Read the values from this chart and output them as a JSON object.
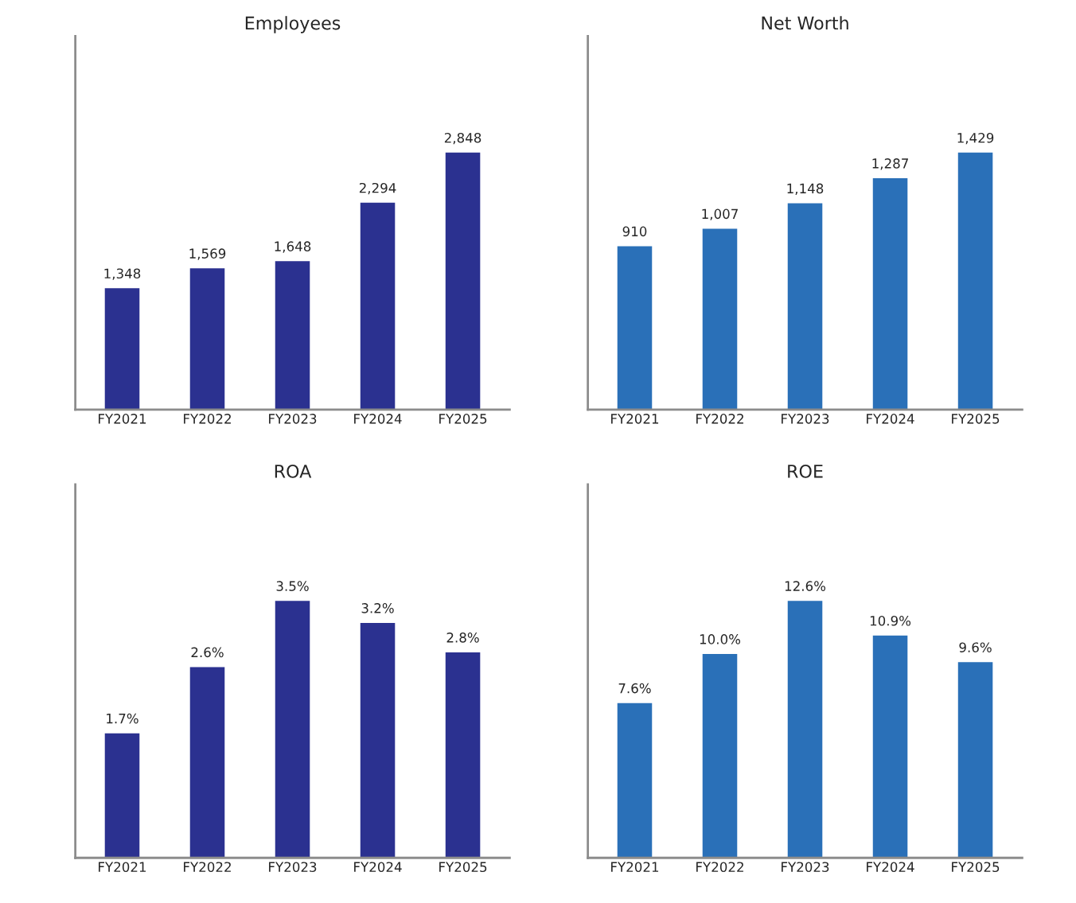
{
  "chart_data": [
    {
      "type": "bar",
      "title": "Employees",
      "categories": [
        "FY2021",
        "FY2022",
        "FY2023",
        "FY2024",
        "FY2025"
      ],
      "values": [
        1348,
        1569,
        1648,
        2294,
        2848
      ],
      "color": "#2b3190",
      "value_labels": [
        "1,348",
        "1,569",
        "1,648",
        "2,294",
        "2,848"
      ],
      "tick_labels": "x",
      "grid": false,
      "legend": false
    },
    {
      "type": "bar",
      "title": "Net Worth",
      "categories": [
        "FY2021",
        "FY2022",
        "FY2023",
        "FY2024",
        "FY2025"
      ],
      "values": [
        910,
        1007,
        1148,
        1287,
        1429
      ],
      "color": "#2a70b8",
      "value_labels": [
        "910",
        "1,007",
        "1,148",
        "1,287",
        "1,429"
      ],
      "tick_labels": "x",
      "grid": false,
      "legend": false
    },
    {
      "type": "bar",
      "title": "ROA",
      "categories": [
        "FY2021",
        "FY2022",
        "FY2023",
        "FY2024",
        "FY2025"
      ],
      "values": [
        1.7,
        2.6,
        3.5,
        3.2,
        2.8
      ],
      "color": "#2b3190",
      "value_labels": [
        "1.7%",
        "2.6%",
        "3.5%",
        "3.2%",
        "2.8%"
      ],
      "tick_labels": "x",
      "grid": false,
      "legend": false
    },
    {
      "type": "bar",
      "title": "ROE",
      "categories": [
        "FY2021",
        "FY2022",
        "FY2023",
        "FY2024",
        "FY2025"
      ],
      "values": [
        7.6,
        10.0,
        12.6,
        10.9,
        9.6
      ],
      "color": "#2a70b8",
      "value_labels": [
        "7.6%",
        "10.0%",
        "12.6%",
        "10.9%",
        "9.6%"
      ],
      "tick_labels": "x",
      "grid": false,
      "legend": false
    }
  ]
}
